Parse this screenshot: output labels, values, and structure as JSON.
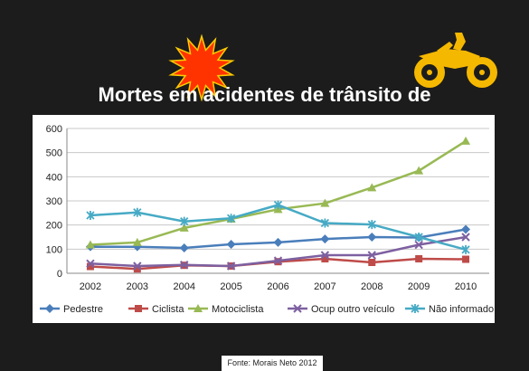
{
  "title": "Mortes em acidentes de trânsito de",
  "source": "Fonte: Morais Neto 2012",
  "icons": {
    "burst": "explosion-burst-icon",
    "moto": "motorcycle-icon"
  },
  "colors": {
    "background": "#1c1c1c",
    "burst": "#ff3300",
    "moto": "#f5b800"
  },
  "chart_data": {
    "type": "line",
    "title": "",
    "xlabel": "",
    "ylabel": "",
    "x": [
      "2002",
      "2003",
      "2004",
      "2005",
      "2006",
      "2007",
      "2008",
      "2009",
      "2010"
    ],
    "ylim": [
      0,
      600
    ],
    "yticks": [
      "0",
      "100",
      "200",
      "300",
      "400",
      "500",
      "600"
    ],
    "grid": true,
    "legend_position": "bottom",
    "series": [
      {
        "name": "Pedestre",
        "color": "#4a7ebb",
        "marker": "diamond",
        "values": [
          110,
          110,
          105,
          120,
          128,
          142,
          150,
          148,
          182
        ]
      },
      {
        "name": "Ciclista",
        "color": "#be4b48",
        "marker": "square",
        "values": [
          28,
          18,
          33,
          30,
          48,
          60,
          45,
          60,
          58
        ]
      },
      {
        "name": "Motociclista",
        "color": "#98b954",
        "marker": "triangle",
        "values": [
          118,
          128,
          188,
          225,
          265,
          290,
          355,
          425,
          548
        ]
      },
      {
        "name": "Ocup outro veículo",
        "color": "#7d60a0",
        "marker": "x",
        "values": [
          40,
          30,
          35,
          30,
          52,
          75,
          75,
          118,
          150
        ]
      },
      {
        "name": "Não informado",
        "color": "#46aac5",
        "marker": "star",
        "values": [
          240,
          252,
          215,
          228,
          283,
          208,
          202,
          150,
          98
        ]
      }
    ]
  }
}
